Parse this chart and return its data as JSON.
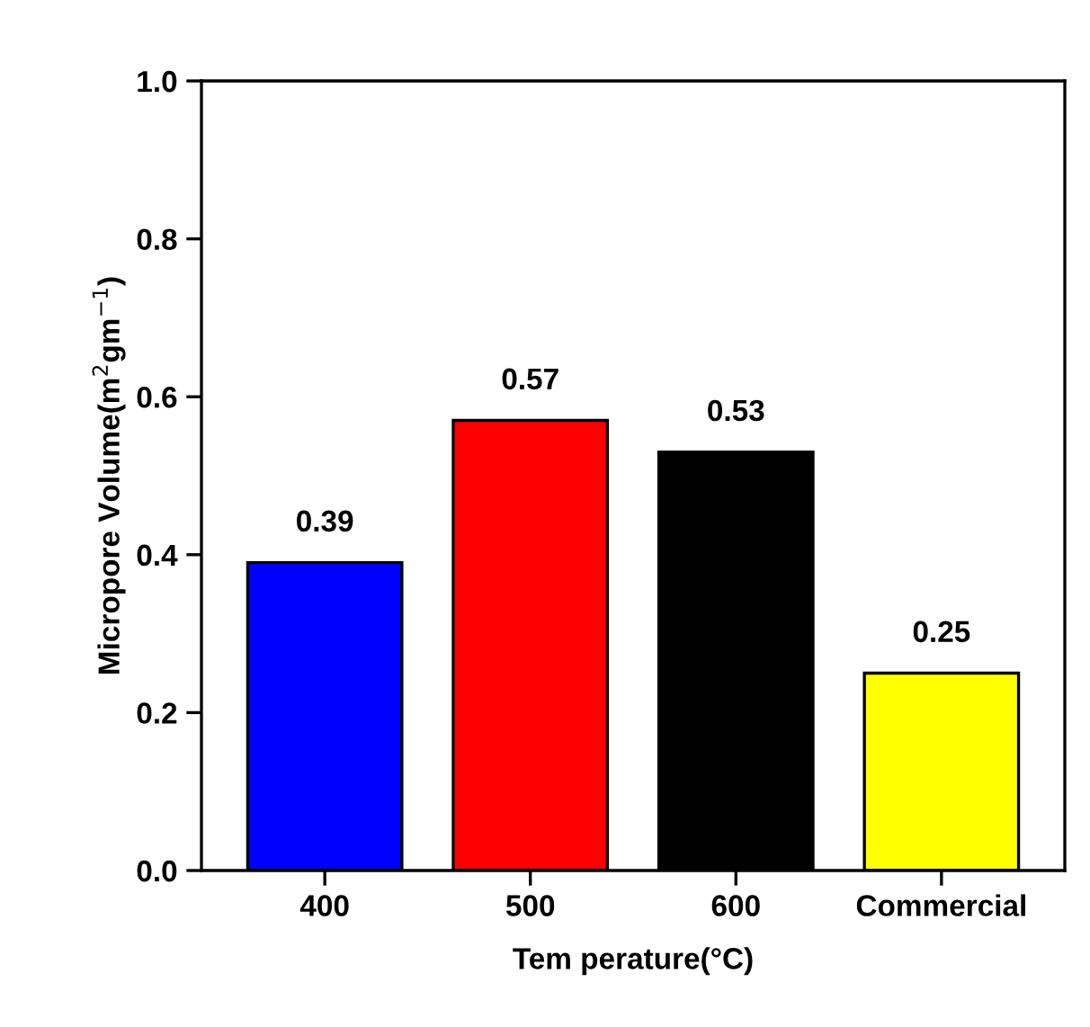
{
  "chart_data": {
    "type": "bar",
    "categories": [
      "400",
      "500",
      "600",
      "Commercial"
    ],
    "values": [
      0.39,
      0.57,
      0.53,
      0.25
    ],
    "colors": [
      "#0000ff",
      "#ff0000",
      "#000000",
      "#ffff00"
    ],
    "value_labels": [
      "0.39",
      "0.57",
      "0.53",
      "0.25"
    ],
    "xlabel": "Tem perature(°C)",
    "ylabel": "Micropore Volume(m$^{2}$gm$^{−1}$)",
    "ylim": [
      0,
      1.0
    ],
    "yticks": [
      {
        "value": 0,
        "label": "0.0"
      },
      {
        "value": 0.2,
        "label": "0.2"
      },
      {
        "value": 0.4,
        "label": "0.4"
      },
      {
        "value": 0.6,
        "label": "0.6"
      },
      {
        "value": 0.8,
        "label": "0.8"
      },
      {
        "value": 1.0,
        "label": "1.0"
      }
    ],
    "grid": false,
    "legend": false
  }
}
